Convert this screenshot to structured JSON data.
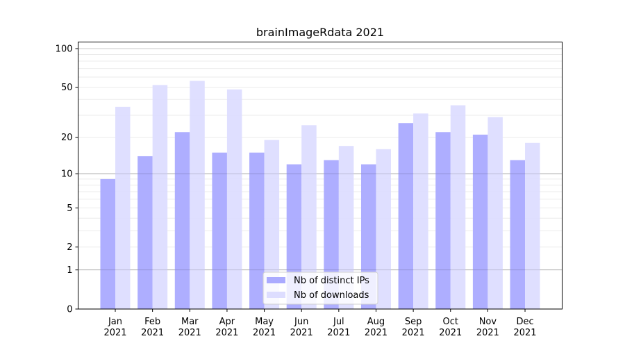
{
  "chart_data": {
    "type": "bar",
    "title": "brainImageRdata 2021",
    "xlabel": "",
    "ylabel": "",
    "yscale": "log1p",
    "ylim": [
      0,
      113
    ],
    "yticks": [
      0,
      1,
      2,
      5,
      10,
      20,
      50,
      100
    ],
    "grid": true,
    "legend_placement": "bottom-center",
    "categories": [
      "Jan\n2021",
      "Feb\n2021",
      "Mar\n2021",
      "Apr\n2021",
      "May\n2021",
      "Jun\n2021",
      "Jul\n2021",
      "Aug\n2021",
      "Sep\n2021",
      "Oct\n2021",
      "Nov\n2021",
      "Dec\n2021"
    ],
    "series": [
      {
        "name": "Nb of distinct IPs",
        "color": "#aaaaff",
        "values": [
          9,
          14,
          22,
          15,
          15,
          12,
          13,
          12,
          26,
          22,
          21,
          13
        ]
      },
      {
        "name": "Nb of downloads",
        "color": "#ddddff",
        "values": [
          35,
          52,
          56,
          48,
          19,
          25,
          17,
          16,
          31,
          36,
          29,
          18
        ]
      }
    ]
  }
}
